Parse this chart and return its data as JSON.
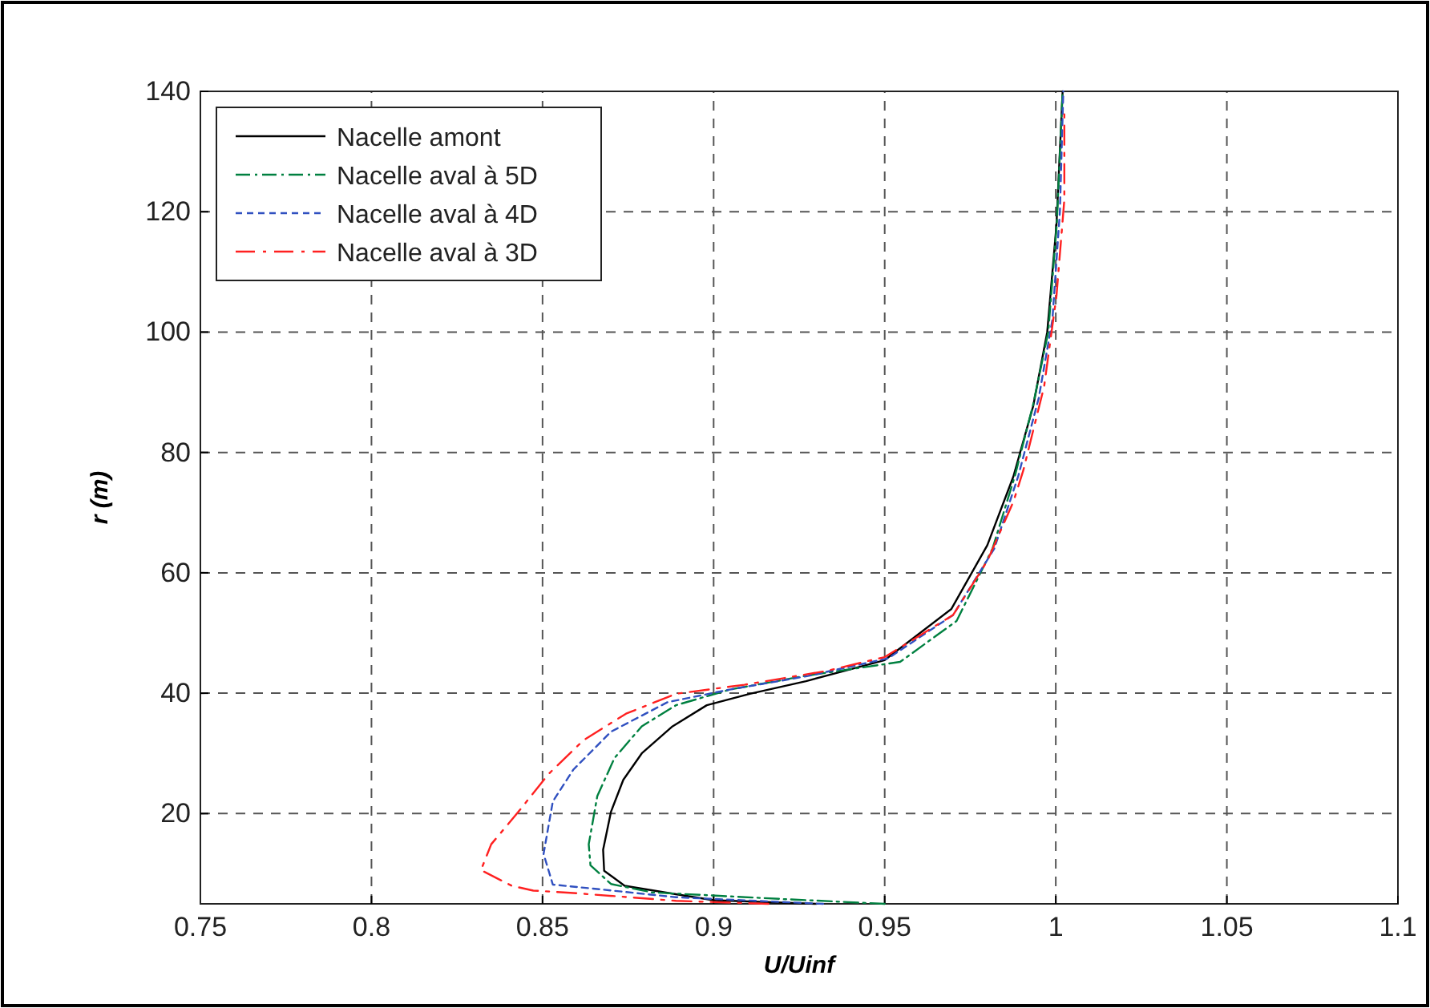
{
  "chart_data": {
    "type": "line",
    "xlabel": "U/Uinf",
    "ylabel": "r (m)",
    "xlim": [
      0.75,
      1.1
    ],
    "ylim": [
      5,
      140
    ],
    "xticks": [
      0.75,
      0.8,
      0.85,
      0.9,
      0.95,
      1,
      1.05,
      1.1
    ],
    "yticks": [
      20,
      40,
      60,
      80,
      100,
      120,
      140
    ],
    "grid": true,
    "legend": "top left",
    "marker": "none",
    "series": [
      {
        "name": "Nacelle amont",
        "color": "#000000",
        "line_style": "solid",
        "x": [
          0.93,
          0.9,
          0.889,
          0.874,
          0.868,
          0.8677,
          0.87,
          0.8736,
          0.879,
          0.888,
          0.898,
          0.9106,
          0.927,
          0.95,
          0.9695,
          0.98,
          0.9876,
          0.9934,
          0.9975,
          1.0002,
          1.002
        ],
        "values": [
          5,
          5.6,
          6.6,
          8,
          10.5,
          14,
          20.3,
          25.6,
          30,
          34.5,
          38,
          39.9,
          42,
          45.5,
          54,
          64.6,
          76,
          87.7,
          100,
          117.8,
          140
        ]
      },
      {
        "name": "Nacelle aval à 5D",
        "color": "#008040",
        "line_style": "dashed",
        "x": [
          0.95,
          0.92,
          0.882,
          0.87,
          0.864,
          0.8635,
          0.866,
          0.871,
          0.879,
          0.889,
          0.9047,
          0.927,
          0.9545,
          0.971,
          0.9815,
          0.988,
          0.9934,
          0.9978,
          1.0003,
          1.002
        ],
        "values": [
          5,
          5.8,
          6.9,
          8.3,
          11.4,
          14.9,
          22.9,
          29.2,
          34.5,
          38,
          40.6,
          42.9,
          45.2,
          52,
          64,
          76,
          88,
          100,
          118,
          140
        ]
      },
      {
        "name": "Nacelle aval à 4D",
        "color": "#3050c0",
        "line_style": "dashed",
        "x": [
          0.932,
          0.889,
          0.867,
          0.853,
          0.8503,
          0.853,
          0.859,
          0.87,
          0.8865,
          0.9047,
          0.927,
          0.951,
          0.97,
          0.982,
          0.989,
          0.995,
          0.999,
          1.0012,
          1.0022
        ],
        "values": [
          5,
          6.1,
          7.4,
          8.2,
          13.3,
          22,
          27.3,
          33.6,
          38.5,
          40.6,
          42.8,
          45.8,
          53,
          64,
          76,
          89,
          102,
          120,
          140
        ]
      },
      {
        "name": "Nacelle aval à 3D",
        "color": "#ff2020",
        "line_style": "dashed",
        "x": [
          0.916,
          0.889,
          0.859,
          0.8473,
          0.841,
          0.832,
          0.835,
          0.8428,
          0.8518,
          0.862,
          0.8744,
          0.889,
          0.909,
          0.933,
          0.95,
          0.97,
          0.98,
          0.9876,
          0.9905,
          0.9966,
          1.0002,
          1.0025,
          1.0025
        ],
        "values": [
          5,
          5.5,
          6.8,
          7.2,
          8,
          10.6,
          14.9,
          20.2,
          26.6,
          32.2,
          36.6,
          39.9,
          41.4,
          43.7,
          46,
          53,
          62,
          71.8,
          77,
          91,
          106,
          122,
          137
        ]
      }
    ]
  }
}
